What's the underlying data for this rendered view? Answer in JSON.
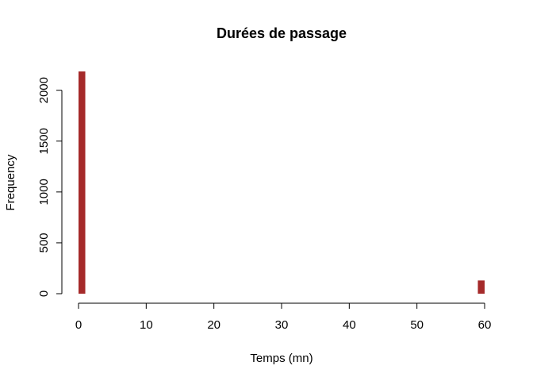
{
  "chart_data": {
    "type": "bar",
    "title": "Durées de passage",
    "xlabel": "Temps (mn)",
    "ylabel": "Frequency",
    "xlim": [
      0,
      60
    ],
    "ylim": [
      0,
      2185
    ],
    "x_ticks": [
      0,
      10,
      20,
      30,
      40,
      50,
      60
    ],
    "x_tick_labels": [
      "0",
      "10",
      "20",
      "30",
      "40",
      "50",
      "60"
    ],
    "y_ticks": [
      0,
      500,
      1000,
      1500,
      2000
    ],
    "y_tick_labels": [
      "0",
      "500",
      "1000",
      "1500",
      "2000"
    ],
    "bars": [
      {
        "x0": 0,
        "x1": 1,
        "count": 2185
      },
      {
        "x0": 59,
        "x1": 60,
        "count": 130
      }
    ],
    "grid": false,
    "legend": "none",
    "bar_color": "#a52a2a"
  }
}
